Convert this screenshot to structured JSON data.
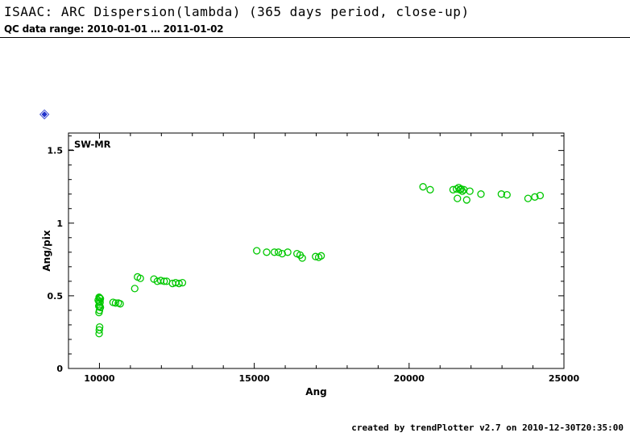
{
  "header": {
    "title": "ISAAC: ARC Dispersion(lambda) (365 days period, close-up)",
    "subtitle": "QC data range: 2010-01-01 … 2011-01-02"
  },
  "footer": {
    "credit": "created by trendPlotter v2.7 on 2010-12-30T20:35:00"
  },
  "icons": {
    "diamond_glyph": "◈"
  },
  "colors": {
    "marker_green": "#00c800",
    "diamond_blue": "#2233cc",
    "axis_black": "#000000"
  },
  "chart_data": {
    "type": "scatter",
    "series_label": "SW-MR",
    "xlabel": "Ang",
    "ylabel": "Ang/pix",
    "xlim": [
      9000,
      25000
    ],
    "ylim": [
      0,
      1.62
    ],
    "xticks": [
      10000,
      15000,
      20000,
      25000
    ],
    "xtick_labels": [
      "10000",
      "15000",
      "20000",
      "25000"
    ],
    "yticks": [
      0,
      0.5,
      1,
      1.5
    ],
    "ytick_labels": [
      "0",
      "0.5",
      "1",
      "1.5"
    ],
    "x_minor_step": 1000,
    "y_minor_step": 0.1,
    "marker": "open-circle",
    "marker_color": "#00c800",
    "grid": false,
    "points": [
      [
        9960,
        0.47
      ],
      [
        9990,
        0.49
      ],
      [
        10010,
        0.485
      ],
      [
        10030,
        0.48
      ],
      [
        9985,
        0.46
      ],
      [
        10020,
        0.455
      ],
      [
        9980,
        0.43
      ],
      [
        10010,
        0.43
      ],
      [
        10030,
        0.42
      ],
      [
        10000,
        0.4
      ],
      [
        9985,
        0.385
      ],
      [
        10005,
        0.285
      ],
      [
        9995,
        0.265
      ],
      [
        9990,
        0.24
      ],
      [
        10440,
        0.455
      ],
      [
        10520,
        0.45
      ],
      [
        10610,
        0.45
      ],
      [
        10670,
        0.445
      ],
      [
        11140,
        0.55
      ],
      [
        11230,
        0.63
      ],
      [
        11320,
        0.62
      ],
      [
        11760,
        0.615
      ],
      [
        11870,
        0.6
      ],
      [
        11980,
        0.605
      ],
      [
        12090,
        0.6
      ],
      [
        12170,
        0.6
      ],
      [
        12360,
        0.585
      ],
      [
        12460,
        0.59
      ],
      [
        12570,
        0.585
      ],
      [
        12680,
        0.59
      ],
      [
        15080,
        0.81
      ],
      [
        15400,
        0.8
      ],
      [
        15650,
        0.8
      ],
      [
        15780,
        0.8
      ],
      [
        15900,
        0.79
      ],
      [
        16080,
        0.8
      ],
      [
        16380,
        0.79
      ],
      [
        16480,
        0.78
      ],
      [
        16550,
        0.76
      ],
      [
        16980,
        0.77
      ],
      [
        17080,
        0.765
      ],
      [
        17160,
        0.775
      ],
      [
        20450,
        1.25
      ],
      [
        20680,
        1.23
      ],
      [
        21420,
        1.23
      ],
      [
        21530,
        1.235
      ],
      [
        21600,
        1.245
      ],
      [
        21640,
        1.23
      ],
      [
        21680,
        1.235
      ],
      [
        21720,
        1.22
      ],
      [
        21770,
        1.23
      ],
      [
        21560,
        1.17
      ],
      [
        21860,
        1.16
      ],
      [
        21960,
        1.22
      ],
      [
        22320,
        1.2
      ],
      [
        22980,
        1.2
      ],
      [
        23160,
        1.195
      ],
      [
        23840,
        1.17
      ],
      [
        24060,
        1.18
      ],
      [
        24230,
        1.19
      ]
    ]
  }
}
